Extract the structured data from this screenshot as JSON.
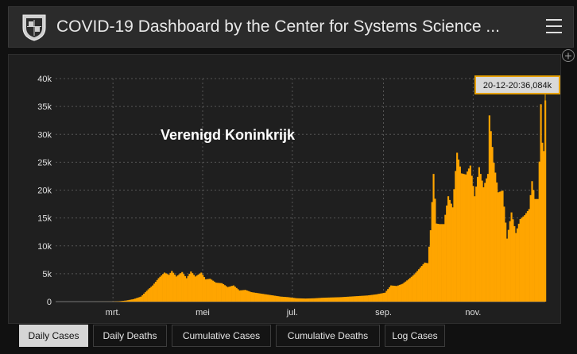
{
  "header": {
    "title": "COVID-19 Dashboard by the Center for Systems Science ...",
    "logo_icon": "university-shield-icon",
    "menu_icon": "hamburger-menu-icon"
  },
  "panel": {
    "expand_icon": "expand-icon"
  },
  "tabs": [
    {
      "label": "Daily Cases",
      "active": true
    },
    {
      "label": "Daily Deaths",
      "active": false
    },
    {
      "label": "Cumulative Cases",
      "active": false
    },
    {
      "label": "Cumulative Deaths",
      "active": false
    },
    {
      "label": "Log Cases",
      "active": false
    }
  ],
  "colors": {
    "bar": "#ffa500",
    "background": "#1f1f1f",
    "grid": "#555555",
    "tooltip_bg": "#d9d9d9",
    "tooltip_border": "#e5a000"
  },
  "chart_data": {
    "type": "bar",
    "title": "Verenigd Koninkrijk",
    "xlabel": "",
    "ylabel": "",
    "ylim": [
      0,
      40000
    ],
    "y_ticks": [
      0,
      5000,
      10000,
      15000,
      20000,
      25000,
      30000,
      35000,
      40000
    ],
    "y_tick_labels": [
      "0",
      "5k",
      "10k",
      "15k",
      "20k",
      "25k",
      "30k",
      "35k",
      "40k"
    ],
    "x_tick_labels": [
      "mrt.",
      "mei",
      "jul.",
      "sep.",
      "nov."
    ],
    "grid": true,
    "tooltip": "20-12-20:36,084k",
    "series": [
      {
        "name": "",
        "points": [
          [
            "2020-01-22",
            0
          ],
          [
            "2020-02-01",
            0
          ],
          [
            "2020-02-15",
            0
          ],
          [
            "2020-02-29",
            10
          ],
          [
            "2020-03-05",
            60
          ],
          [
            "2020-03-10",
            200
          ],
          [
            "2020-03-15",
            450
          ],
          [
            "2020-03-20",
            900
          ],
          [
            "2020-03-25",
            2200
          ],
          [
            "2020-03-28",
            2900
          ],
          [
            "2020-04-01",
            4200
          ],
          [
            "2020-04-05",
            5200
          ],
          [
            "2020-04-08",
            4800
          ],
          [
            "2020-04-10",
            5500
          ],
          [
            "2020-04-13",
            4500
          ],
          [
            "2020-04-17",
            5300
          ],
          [
            "2020-04-20",
            4200
          ],
          [
            "2020-04-23",
            5400
          ],
          [
            "2020-04-26",
            4500
          ],
          [
            "2020-04-30",
            5200
          ],
          [
            "2020-05-03",
            4000
          ],
          [
            "2020-05-06",
            4100
          ],
          [
            "2020-05-10",
            3400
          ],
          [
            "2020-05-14",
            3300
          ],
          [
            "2020-05-18",
            2600
          ],
          [
            "2020-05-22",
            2900
          ],
          [
            "2020-05-26",
            2000
          ],
          [
            "2020-05-30",
            2100
          ],
          [
            "2020-06-03",
            1700
          ],
          [
            "2020-06-08",
            1500
          ],
          [
            "2020-06-13",
            1300
          ],
          [
            "2020-06-18",
            1100
          ],
          [
            "2020-06-23",
            900
          ],
          [
            "2020-06-28",
            800
          ],
          [
            "2020-07-04",
            600
          ],
          [
            "2020-07-10",
            550
          ],
          [
            "2020-07-16",
            600
          ],
          [
            "2020-07-22",
            700
          ],
          [
            "2020-07-28",
            750
          ],
          [
            "2020-08-03",
            800
          ],
          [
            "2020-08-09",
            900
          ],
          [
            "2020-08-15",
            1000
          ],
          [
            "2020-08-21",
            1100
          ],
          [
            "2020-08-27",
            1300
          ],
          [
            "2020-09-02",
            1600
          ],
          [
            "2020-09-06",
            2900
          ],
          [
            "2020-09-10",
            2800
          ],
          [
            "2020-09-14",
            3200
          ],
          [
            "2020-09-18",
            4000
          ],
          [
            "2020-09-22",
            4900
          ],
          [
            "2020-09-26",
            6100
          ],
          [
            "2020-09-29",
            7000
          ],
          [
            "2020-10-01",
            6900
          ],
          [
            "2020-10-03",
            12800
          ],
          [
            "2020-10-05",
            22900
          ],
          [
            "2020-10-07",
            14000
          ],
          [
            "2020-10-09",
            13900
          ],
          [
            "2020-10-12",
            13900
          ],
          [
            "2020-10-15",
            18900
          ],
          [
            "2020-10-18",
            16900
          ],
          [
            "2020-10-21",
            26700
          ],
          [
            "2020-10-24",
            23000
          ],
          [
            "2020-10-27",
            22800
          ],
          [
            "2020-10-30",
            24400
          ],
          [
            "2020-11-02",
            18900
          ],
          [
            "2020-11-05",
            24100
          ],
          [
            "2020-11-08",
            20500
          ],
          [
            "2020-11-11",
            22900
          ],
          [
            "2020-11-12",
            33400
          ],
          [
            "2020-11-15",
            24900
          ],
          [
            "2020-11-18",
            19600
          ],
          [
            "2020-11-21",
            19900
          ],
          [
            "2020-11-24",
            11300
          ],
          [
            "2020-11-27",
            16000
          ],
          [
            "2020-11-30",
            12300
          ],
          [
            "2020-12-03",
            14800
          ],
          [
            "2020-12-06",
            15500
          ],
          [
            "2020-12-09",
            16600
          ],
          [
            "2020-12-11",
            21600
          ],
          [
            "2020-12-13",
            18400
          ],
          [
            "2020-12-15",
            18400
          ],
          [
            "2020-12-16",
            25100
          ],
          [
            "2020-12-17",
            35400
          ],
          [
            "2020-12-18",
            28500
          ],
          [
            "2020-12-19",
            27000
          ],
          [
            "2020-12-20",
            36084
          ]
        ]
      }
    ]
  }
}
